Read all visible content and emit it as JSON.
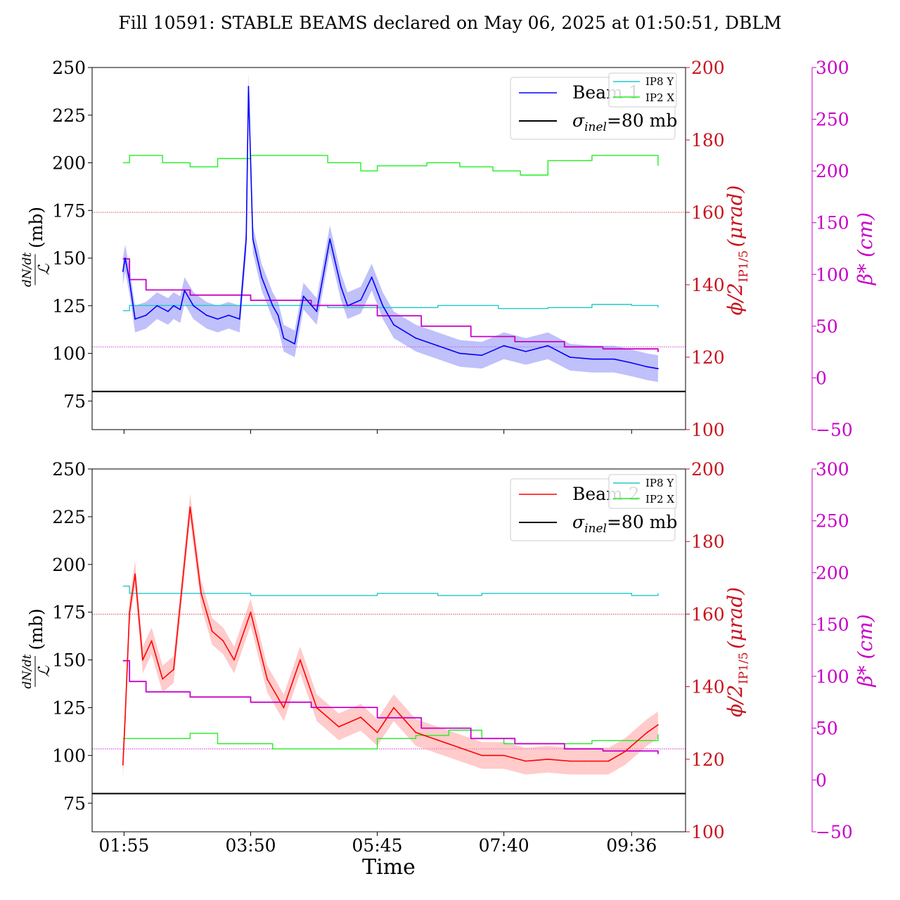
{
  "title": "Fill 10591: STABLE BEAMS declared on May 06, 2025 at 01:50:51, DBLM",
  "xlabel": "Time",
  "colors": {
    "beam1": "#0000ff",
    "beam1_band": "#8c8cf5",
    "beam2": "#ff0000",
    "beam2_band": "#ffa0a0",
    "ip8": "#20c8c8",
    "ip2": "#22ee22",
    "sigma": "#000000",
    "angle_axis": "#c8141e",
    "beta_axis": "#c800c8",
    "beta_line": "#c800c8"
  },
  "chart_data": [
    {
      "type": "line",
      "panel": "top",
      "x_ticks": [
        "01:55",
        "03:50",
        "05:45",
        "07:40",
        "09:36"
      ],
      "x_tick_minutes": [
        115,
        230,
        345,
        460,
        576
      ],
      "xlim_minutes": [
        86,
        625
      ],
      "ylabel_left": "dN/dt / 𝓛 (mb)",
      "ylim_left": [
        60,
        250
      ],
      "yticks_left": [
        75,
        100,
        125,
        150,
        175,
        200,
        225,
        250
      ],
      "ylabel_right": "φ/2_IP1/5 (μrad)",
      "ylim_right": [
        100,
        200
      ],
      "yticks_right": [
        100,
        120,
        140,
        160,
        180,
        200
      ],
      "ylabel_beta": "β* (cm)",
      "ylim_beta": [
        -50,
        300
      ],
      "yticks_beta": [
        -50,
        0,
        50,
        100,
        150,
        200,
        250,
        300
      ],
      "legend_main": [
        "Beam 1",
        "σ_inel=80 mb"
      ],
      "legend_main_location": "upper right",
      "legend_small": [
        "IP8 Y",
        "IP2 X"
      ],
      "legend_small_location": "upper right corner",
      "sigma_inel_mb": 80,
      "ref_line_angle": 160,
      "ref_line_beta": 30,
      "series": [
        {
          "name": "Beam 1",
          "axis": "left",
          "x": [
            114,
            116,
            120,
            125,
            135,
            145,
            155,
            160,
            166,
            170,
            178,
            190,
            200,
            210,
            220,
            226,
            228,
            232,
            240,
            250,
            255,
            260,
            270,
            278,
            290,
            302,
            306,
            312,
            318,
            330,
            340,
            350,
            360,
            380,
            400,
            420,
            440,
            460,
            480,
            500,
            520,
            540,
            560,
            576,
            590,
            600
          ],
          "y": [
            143,
            150,
            138,
            118,
            120,
            125,
            122,
            125,
            123,
            133,
            125,
            120,
            118,
            120,
            118,
            160,
            240,
            160,
            140,
            125,
            120,
            108,
            105,
            130,
            122,
            160,
            150,
            135,
            125,
            128,
            140,
            125,
            115,
            108,
            104,
            100,
            99,
            104,
            101,
            104,
            98,
            97,
            97,
            95,
            93,
            92
          ]
        },
        {
          "name": "IP8 Y",
          "axis": "beta",
          "x": [
            114,
            120,
            160,
            250,
            300,
            345,
            400,
            430,
            455,
            470,
            500,
            540,
            576,
            600
          ],
          "y": [
            65,
            70,
            70,
            70,
            68,
            68,
            70,
            70,
            67,
            67,
            68,
            71,
            70,
            68
          ]
        },
        {
          "name": "IP2 X",
          "axis": "beta",
          "x": [
            114,
            120,
            150,
            165,
            175,
            200,
            230,
            270,
            300,
            330,
            345,
            390,
            420,
            440,
            450,
            475,
            500,
            540,
            576,
            600
          ],
          "y": [
            208,
            215,
            208,
            208,
            204,
            212,
            215,
            215,
            208,
            200,
            205,
            208,
            204,
            204,
            200,
            196,
            210,
            215,
            215,
            205
          ]
        },
        {
          "name": "β*",
          "axis": "beta",
          "x": [
            114,
            120,
            135,
            175,
            230,
            285,
            345,
            385,
            430,
            470,
            515,
            550,
            600
          ],
          "y": [
            115,
            95,
            85,
            80,
            75,
            70,
            60,
            50,
            40,
            35,
            30,
            28,
            25
          ]
        }
      ]
    },
    {
      "type": "line",
      "panel": "bottom",
      "x_ticks": [
        "01:55",
        "03:50",
        "05:45",
        "07:40",
        "09:36"
      ],
      "x_tick_minutes": [
        115,
        230,
        345,
        460,
        576
      ],
      "xlim_minutes": [
        86,
        625
      ],
      "ylabel_left": "dN/dt / 𝓛 (mb)",
      "ylim_left": [
        60,
        250
      ],
      "yticks_left": [
        75,
        100,
        125,
        150,
        175,
        200,
        225,
        250
      ],
      "ylabel_right": "φ/2_IP1/5 (μrad)",
      "ylim_right": [
        100,
        200
      ],
      "yticks_right": [
        100,
        120,
        140,
        160,
        180,
        200
      ],
      "ylabel_beta": "β* (cm)",
      "ylim_beta": [
        -50,
        300
      ],
      "yticks_beta": [
        -50,
        0,
        50,
        100,
        150,
        200,
        250,
        300
      ],
      "legend_main": [
        "Beam 2",
        "σ_inel=80 mb"
      ],
      "legend_main_location": "upper right",
      "legend_small": [
        "IP8 Y",
        "IP2 X"
      ],
      "legend_small_location": "upper right corner",
      "sigma_inel_mb": 80,
      "ref_line_angle": 160,
      "ref_line_beta": 30,
      "series": [
        {
          "name": "Beam 2",
          "axis": "left",
          "x": [
            114,
            116,
            120,
            125,
            132,
            140,
            150,
            160,
            175,
            185,
            195,
            205,
            215,
            230,
            245,
            260,
            275,
            290,
            310,
            330,
            345,
            360,
            380,
            400,
            420,
            440,
            460,
            480,
            500,
            520,
            540,
            555,
            570,
            590,
            600
          ],
          "y": [
            95,
            120,
            175,
            195,
            150,
            160,
            140,
            145,
            230,
            185,
            165,
            160,
            150,
            175,
            140,
            125,
            150,
            125,
            115,
            120,
            112,
            125,
            112,
            108,
            104,
            100,
            100,
            97,
            98,
            97,
            97,
            97,
            102,
            112,
            116
          ]
        },
        {
          "name": "IP8 Y",
          "axis": "beta",
          "x": [
            114,
            120,
            160,
            230,
            300,
            345,
            400,
            440,
            470,
            520,
            576,
            600
          ],
          "y": [
            187,
            180,
            180,
            178,
            178,
            180,
            178,
            180,
            180,
            180,
            178,
            180
          ]
        },
        {
          "name": "IP2 X",
          "axis": "beta",
          "x": [
            114,
            120,
            150,
            175,
            200,
            250,
            300,
            345,
            380,
            410,
            440,
            460,
            480,
            540,
            576,
            600
          ],
          "y": [
            40,
            40,
            40,
            45,
            35,
            30,
            30,
            40,
            43,
            48,
            40,
            35,
            35,
            38,
            38,
            44
          ]
        },
        {
          "name": "β*",
          "axis": "beta",
          "x": [
            114,
            120,
            135,
            175,
            230,
            285,
            345,
            385,
            430,
            470,
            515,
            550,
            600
          ],
          "y": [
            115,
            95,
            85,
            80,
            75,
            70,
            60,
            50,
            40,
            35,
            30,
            28,
            25
          ]
        }
      ]
    }
  ]
}
